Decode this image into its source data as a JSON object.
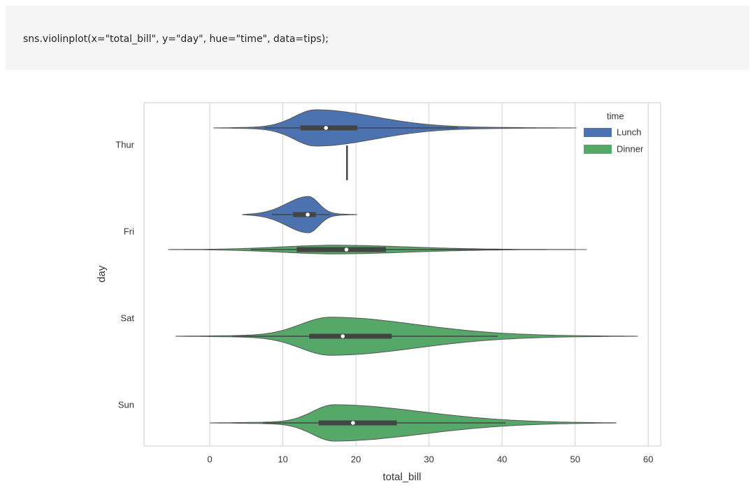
{
  "code": "sns.violinplot(x=\"total_bill\", y=\"day\", hue=\"time\", data=tips);",
  "chart_data": {
    "type": "violin",
    "xlabel": "total_bill",
    "ylabel": "day",
    "categories": [
      "Thur",
      "Fri",
      "Sat",
      "Sun"
    ],
    "xlim": [
      -9,
      61.7
    ],
    "xticks": [
      0,
      10,
      20,
      30,
      40,
      50,
      60
    ],
    "grid": true,
    "legend_title": "time",
    "legend": "upper right",
    "series": [
      {
        "name": "Lunch",
        "color": "#4c72b0",
        "values": [
          {
            "low": 0.5,
            "high": 50.2,
            "whisker_low": 7.5,
            "whisker_high": 34,
            "q1": 12.4,
            "median": 15.9,
            "q3": 20.2,
            "mode": 14.5,
            "width": 0.21
          },
          {
            "low": 4.5,
            "high": 20.2,
            "whisker_low": 8.5,
            "whisker_high": 16.5,
            "q1": 11.4,
            "median": 13.4,
            "q3": 14.5,
            "mode": 13.5,
            "width": 0.21
          },
          null,
          null
        ]
      },
      {
        "name": "Dinner",
        "color": "#55a868",
        "values": [
          {
            "low": 18.78,
            "high": 18.78,
            "whisker_low": 18.78,
            "whisker_high": 18.78,
            "q1": 18.78,
            "median": 18.78,
            "q3": 18.78,
            "mode": 18.78,
            "width": 0.2
          },
          {
            "low": -5.7,
            "high": 51.6,
            "whisker_low": 5.6,
            "whisker_high": 40.2,
            "q1": 11.9,
            "median": 18.7,
            "q3": 24.1,
            "mode": 17,
            "width": 0.05
          },
          {
            "low": -4.7,
            "high": 58.6,
            "whisker_low": 3.1,
            "whisker_high": 39.4,
            "q1": 13.6,
            "median": 18.2,
            "q3": 24.9,
            "mode": 16.5,
            "width": 0.22
          },
          {
            "low": 0,
            "high": 55.6,
            "whisker_low": 7.3,
            "whisker_high": 40.5,
            "q1": 14.9,
            "median": 19.6,
            "q3": 25.6,
            "mode": 17,
            "width": 0.21
          }
        ]
      }
    ]
  }
}
